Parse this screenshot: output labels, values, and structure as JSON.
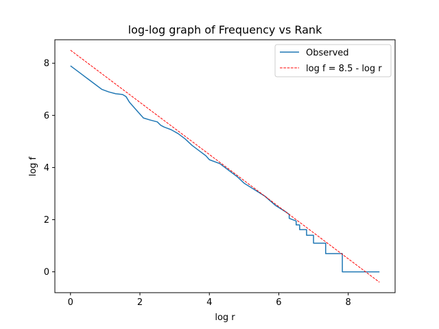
{
  "chart_data": {
    "type": "line",
    "title": "log-log graph of Frequency vs Rank",
    "xlabel": "log r",
    "ylabel": "log f",
    "xlim": [
      -0.45,
      9.35
    ],
    "ylim": [
      -0.8,
      8.9
    ],
    "x_ticks": [
      0,
      2,
      4,
      6,
      8
    ],
    "y_ticks": [
      0,
      2,
      4,
      6,
      8
    ],
    "x_tick_labels": [
      "0",
      "2",
      "4",
      "6",
      "8"
    ],
    "y_tick_labels": [
      "0",
      "2",
      "4",
      "6",
      "8"
    ],
    "grid": false,
    "legend": {
      "placement": "top-right",
      "entries": [
        "Observed",
        "log f = 8.5 - log r"
      ]
    },
    "series": [
      {
        "name": "Observed",
        "color": "#1f77b4",
        "style": "solid",
        "x": [
          0,
          0.3,
          0.6,
          0.9,
          1.1,
          1.3,
          1.5,
          1.6,
          1.7,
          1.9,
          2.1,
          2.3,
          2.5,
          2.6,
          2.7,
          2.8,
          2.9,
          3.1,
          3.3,
          3.5,
          3.7,
          3.9,
          4.0,
          4.3,
          4.6,
          4.8,
          5.0,
          5.3,
          5.6,
          5.9,
          6.2,
          6.3,
          6.3,
          6.5,
          6.5,
          6.6,
          6.6,
          6.8,
          6.8,
          7.0,
          7.0,
          7.35,
          7.35,
          7.83,
          7.83,
          8.9
        ],
        "y": [
          7.9,
          7.6,
          7.3,
          7.0,
          6.9,
          6.83,
          6.8,
          6.72,
          6.5,
          6.2,
          5.9,
          5.82,
          5.75,
          5.62,
          5.55,
          5.5,
          5.45,
          5.3,
          5.1,
          4.85,
          4.65,
          4.45,
          4.3,
          4.15,
          3.85,
          3.65,
          3.4,
          3.15,
          2.9,
          2.55,
          2.3,
          2.2,
          2.05,
          1.95,
          1.8,
          1.8,
          1.62,
          1.62,
          1.4,
          1.4,
          1.1,
          1.1,
          0.7,
          0.7,
          0.0,
          0.0
        ]
      },
      {
        "name": "log f = 8.5 - log r",
        "color": "#ff0000",
        "style": "dashed",
        "x": [
          0,
          8.9
        ],
        "y": [
          8.5,
          -0.4
        ]
      }
    ]
  }
}
